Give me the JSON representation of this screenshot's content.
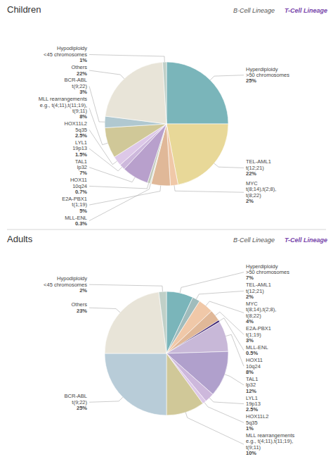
{
  "chart_data": [
    {
      "type": "pie",
      "title": "Children",
      "categories": [
        "Hyperdiploidy\n>50 chromosomes",
        "TEL-AML1\nt(12;21)",
        "MYC\nt(8;14),t(2;8),\nt(8;22)",
        "E2A-PBX1\nt(1;19)",
        "MLL-ENL",
        "HOX11\n10q24",
        "TAL1\nlp32",
        "LYL1\n19p13",
        "HOX11L2\n5q35",
        "MLL rearrangements\ne.g., t(4;11),t(11;19),\nt(9;11)",
        "BCR-ABL\nt(9;22)",
        "Others",
        "Hypodiploidy\n<45 chromosomes"
      ],
      "values": [
        25,
        22,
        2,
        5,
        0.3,
        0.7,
        7,
        1.5,
        2.5,
        8,
        3,
        22,
        1
      ],
      "value_labels": [
        "25%",
        "22%",
        "2%",
        "5%",
        "0.3%",
        "0.7%",
        "7%",
        "1.5%",
        "2.5%",
        "8%",
        "3%",
        "22%",
        "1%"
      ],
      "colors": [
        "#7ab5ba",
        "#e8d898",
        "#f0c8a8",
        "#e0b898",
        "#d8e0d0",
        "#c0c8b8",
        "#b8a0cc",
        "#cdb8dc",
        "#ddc8e8",
        "#d0c898",
        "#b0c8d0",
        "#e8e4d8",
        "#c0d0c8"
      ],
      "annotations": [
        "B-Cell Lineage",
        "T-Cell Lineage"
      ]
    },
    {
      "type": "pie",
      "title": "Adults",
      "categories": [
        "Hyperdiploidy\n>50 chromosomes",
        "TEL-AML1\nt(12;21)",
        "MYC\nt(8;14),t(2;8),\nt(8;22)",
        "E2A-PBX1\nt(1;19)",
        "MLL-ENL",
        "HOX11\n10q24",
        "TAL1\nlp32",
        "LYL1\n19p13",
        "HOX11L2\n5q35",
        "MLL rearrangements\ne.g., t(4;11),t(11;19),\nt(9;11)",
        "BCR-ABL\nt(9;22)",
        "Others",
        "Hypodiploidy\n<45 chromosomes"
      ],
      "values": [
        7,
        2,
        4,
        3,
        0.5,
        8,
        12,
        2.5,
        1,
        10,
        25,
        23,
        2
      ],
      "value_labels": [
        "7%",
        "2%",
        "4%",
        "3%",
        "0.5%",
        "8%",
        "12%",
        "2.5%",
        "1%",
        "10%",
        "25%",
        "23%",
        "2%"
      ],
      "colors": [
        "#7ab5ba",
        "#a0bcbc",
        "#f0c8a8",
        "#e0b898",
        "#3a2070",
        "#c8b8d8",
        "#b0a0cc",
        "#cdb8dc",
        "#ddc8e8",
        "#d0c898",
        "#b8ccd8",
        "#e8e4d8",
        "#c0d0c8"
      ],
      "annotations": [
        "B-Cell Lineage",
        "T-Cell Lineage"
      ]
    }
  ]
}
